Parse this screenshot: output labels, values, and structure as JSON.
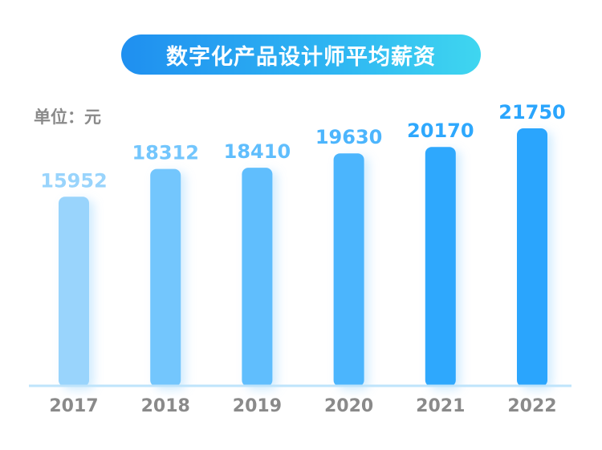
{
  "title": "数字化产品设计师平均薪资",
  "unit_label": "单位：元",
  "colors": {
    "title_gradient_start": "#1f8ff0",
    "title_gradient_end": "#3fd6f0",
    "baseline": "#bfe4fb",
    "tick_text": "#8a8a8a",
    "bars": [
      "#99d4fc",
      "#73c6fd",
      "#60befd",
      "#4cb5fd",
      "#2ea8fd",
      "#2aa5fd"
    ]
  },
  "chart_data": {
    "type": "bar",
    "categories": [
      "2017",
      "2018",
      "2019",
      "2020",
      "2021",
      "2022"
    ],
    "values": [
      15952,
      18312,
      18410,
      19630,
      20170,
      21750
    ],
    "value_labels": [
      "15952",
      "18312",
      "18410",
      "19630",
      "20170",
      "21750"
    ],
    "title": "数字化产品设计师平均薪资",
    "xlabel": "",
    "ylabel": "单位：元",
    "grid": false,
    "legend": "none"
  }
}
